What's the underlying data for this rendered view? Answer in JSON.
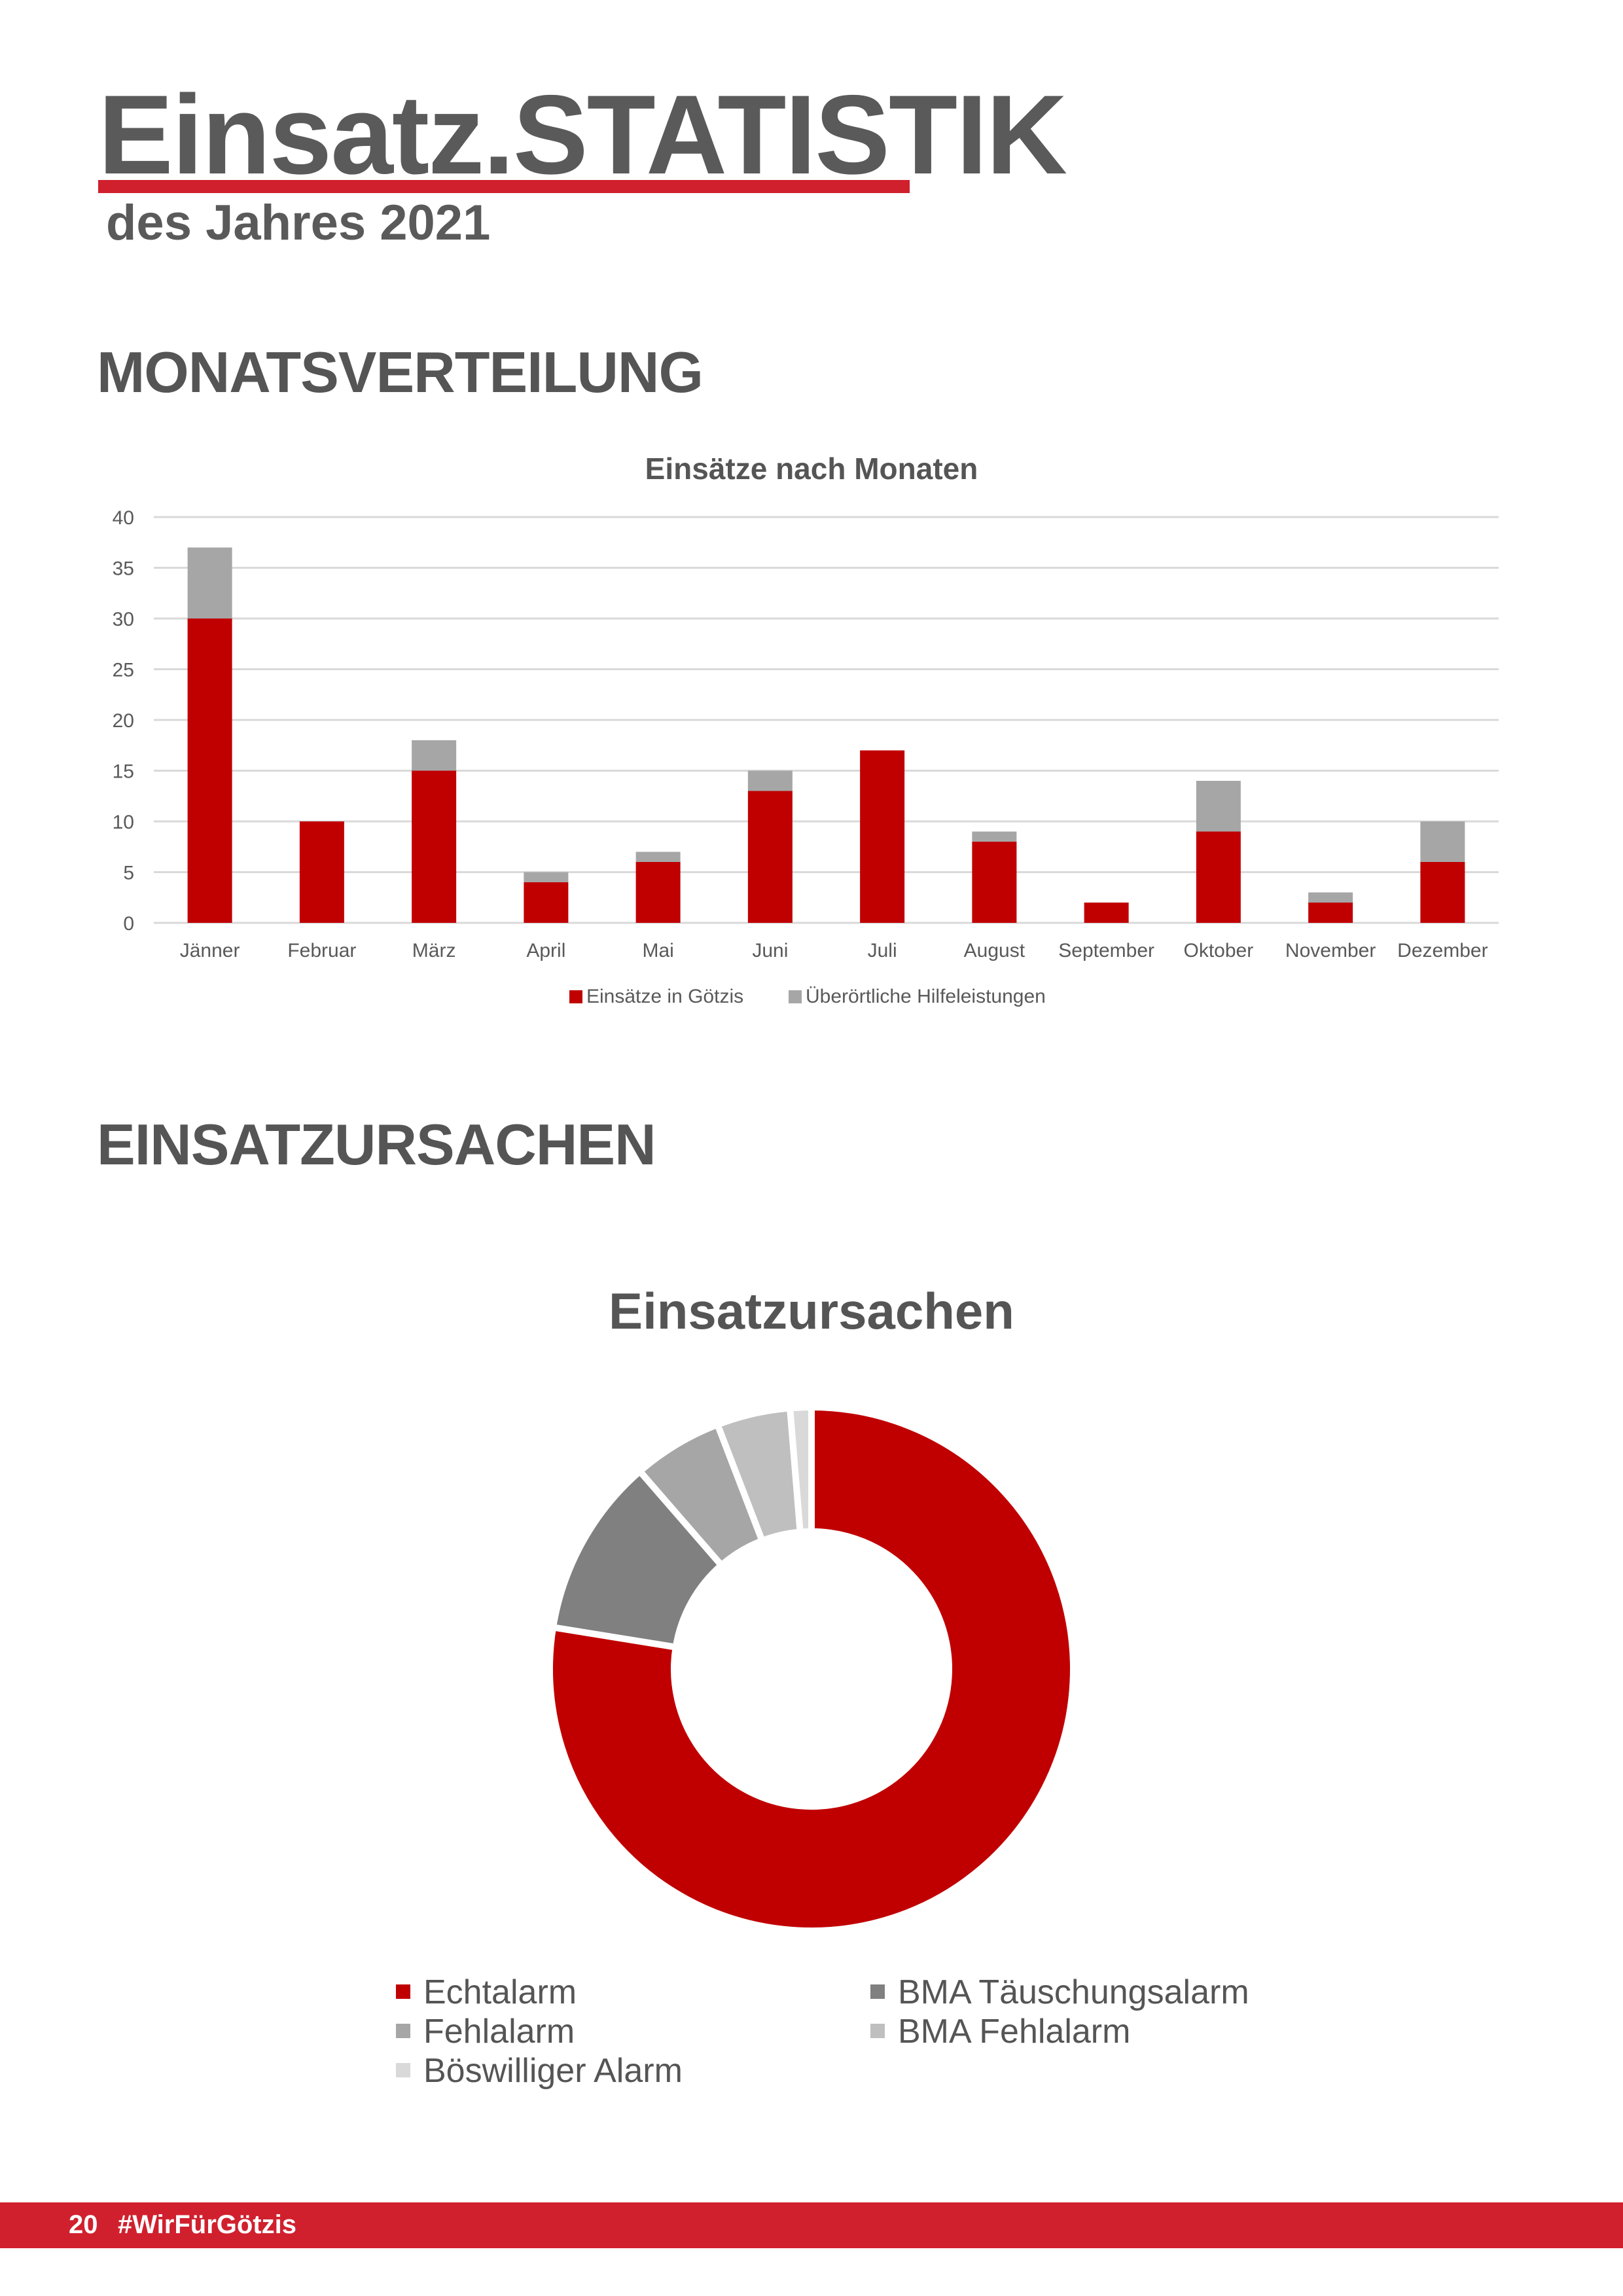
{
  "header": {
    "title": "Einsatz.STATISTIK",
    "subtitle": "des Jahres 2021"
  },
  "sections": {
    "monthly": "MONATSVERTEILUNG",
    "causes": "EINSATZURSACHEN"
  },
  "colors": {
    "accent": "#d0202e",
    "primary_series": "#c00000",
    "secondary_series": "#a6a6a6",
    "text": "#555555"
  },
  "chart_data": [
    {
      "type": "bar",
      "stacked": true,
      "title": "Einsätze nach Monaten",
      "categories": [
        "Jänner",
        "Februar",
        "März",
        "April",
        "Mai",
        "Juni",
        "Juli",
        "August",
        "September",
        "Oktober",
        "November",
        "Dezember"
      ],
      "series": [
        {
          "name": "Einsätze in Götzis",
          "color": "#c00000",
          "values": [
            30,
            10,
            15,
            4,
            6,
            13,
            17,
            8,
            2,
            9,
            2,
            6
          ]
        },
        {
          "name": "Überörtliche Hilfeleistungen",
          "color": "#a6a6a6",
          "values": [
            7,
            0,
            3,
            1,
            1,
            2,
            0,
            1,
            0,
            5,
            1,
            4
          ]
        }
      ],
      "ylim": [
        0,
        40
      ],
      "yticks": [
        0,
        5,
        10,
        15,
        20,
        25,
        30,
        35,
        40
      ],
      "grid": true,
      "legend": "bottom"
    },
    {
      "type": "pie",
      "donut": true,
      "title": "Einsatzursachen",
      "slices": [
        {
          "label": "Echtalarm",
          "value": 77,
          "color": "#c00000"
        },
        {
          "label": "BMA Täuschungsalarm",
          "value": 11,
          "color": "#808080"
        },
        {
          "label": "Fehlalarm",
          "value": 5.5,
          "color": "#a6a6a6"
        },
        {
          "label": "BMA Fehlalarm",
          "value": 4.5,
          "color": "#bfbfbf"
        },
        {
          "label": "Böswilliger Alarm",
          "value": 1.3,
          "color": "#d9d9d9"
        }
      ],
      "legend": "bottom"
    }
  ],
  "footer": {
    "page_number": "20",
    "hashtag": "#WirFürGötzis"
  }
}
